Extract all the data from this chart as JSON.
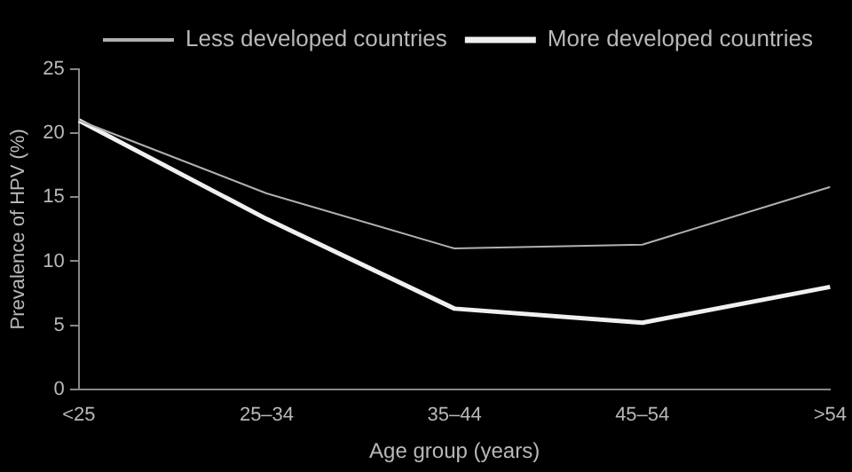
{
  "chart_data": {
    "type": "line",
    "xlabel": "Age group (years)",
    "ylabel": "Prevalence of HPV (%)",
    "categories": [
      "<25",
      "25–34",
      "35–44",
      "45–54",
      ">54"
    ],
    "series": [
      {
        "name": "Less developed countries",
        "color": "#b0b0b0",
        "values": [
          21,
          15.3,
          11,
          11.3,
          15.8
        ]
      },
      {
        "name": "More developed countries",
        "color": "#f0f0f0",
        "values": [
          21,
          13.3,
          6.3,
          5.2,
          8
        ]
      }
    ],
    "ylim": [
      0,
      25
    ],
    "yticks": [
      0,
      5,
      10,
      15,
      20,
      25
    ],
    "grid": false,
    "legend": "top right",
    "marker": "none",
    "line_style": "solid"
  }
}
